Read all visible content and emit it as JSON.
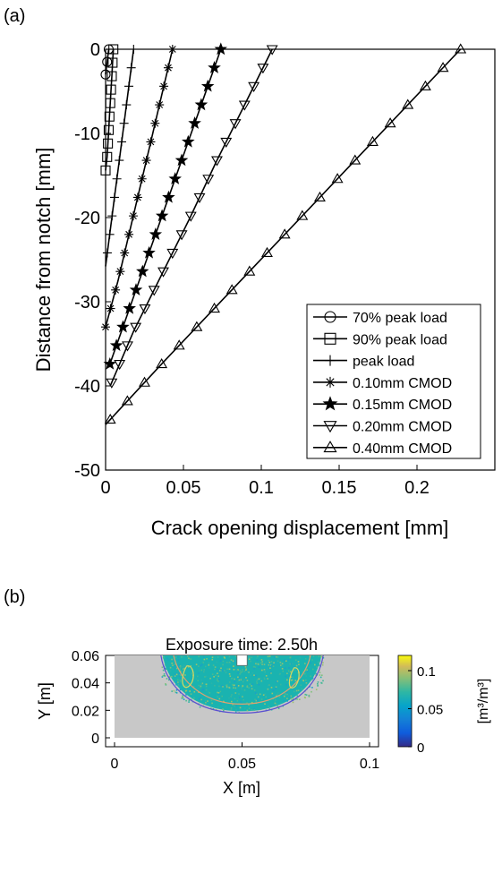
{
  "panels": {
    "a": {
      "label": "(a)"
    },
    "b": {
      "label": "(b)"
    }
  },
  "chart_data": [
    {
      "panel": "(a)",
      "type": "line",
      "title": "",
      "xlabel": "Crack opening displacement [mm]",
      "ylabel": "Distance from notch [mm]",
      "xlim": [
        0,
        0.25
      ],
      "ylim": [
        -50,
        0
      ],
      "xticks": [
        "0",
        "0.05",
        "0.1",
        "0.15",
        "0.2"
      ],
      "xtick_values": [
        0,
        0.05,
        0.1,
        0.15,
        0.2
      ],
      "yticks": [
        "0",
        "-10",
        "-20",
        "-30",
        "-40",
        "-50"
      ],
      "ytick_values": [
        0,
        -10,
        -20,
        -30,
        -40,
        -50
      ],
      "grid": false,
      "legend_position": "bottom-right",
      "series": [
        {
          "name": "70% peak load",
          "marker": "circle",
          "x": [
            0.002,
            0.001,
            0.0
          ],
          "y": [
            0,
            -1.5,
            -3
          ]
        },
        {
          "name": "90% peak load",
          "marker": "square",
          "x": [
            0.005,
            0.0045,
            0.004,
            0.0035,
            0.003,
            0.0025,
            0.002,
            0.0015,
            0.001,
            0.0
          ],
          "y": [
            0,
            -1.6,
            -3.2,
            -4.8,
            -6.4,
            -8,
            -9.6,
            -11.2,
            -12.8,
            -14.4
          ]
        },
        {
          "name": "peak load",
          "marker": "plus",
          "x": [
            0.018,
            0.015,
            0.012,
            0.009,
            0.006,
            0.003,
            0.0
          ],
          "y": [
            0,
            -4.3,
            -8.6,
            -12.9,
            -17.2,
            -21.5,
            -25.8
          ]
        },
        {
          "name": "0.10mm CMOD",
          "marker": "asterisk",
          "x": [
            0.043,
            0.036,
            0.029,
            0.022,
            0.015,
            0.008,
            0.0
          ],
          "y": [
            0,
            -5.5,
            -11,
            -16.5,
            -22,
            -27.5,
            -33
          ]
        },
        {
          "name": "0.15mm CMOD",
          "marker": "star",
          "x": [
            0.074,
            0.062,
            0.05,
            0.038,
            0.026,
            0.014,
            0.002
          ],
          "y": [
            0,
            -6.3,
            -12.6,
            -18.9,
            -25.2,
            -31.5,
            -37.8
          ]
        },
        {
          "name": "0.20mm CMOD",
          "marker": "triangle-down",
          "x": [
            0.107,
            0.089,
            0.071,
            0.054,
            0.036,
            0.018,
            0.003
          ],
          "y": [
            0,
            -6.7,
            -13.4,
            -20.1,
            -26.8,
            -33.5,
            -40
          ]
        },
        {
          "name": "0.40mm CMOD",
          "marker": "triangle-up",
          "x": [
            0.228,
            0.19,
            0.152,
            0.114,
            0.076,
            0.038,
            0.0
          ],
          "y": [
            0,
            -7.4,
            -14.8,
            -22.2,
            -29.6,
            -37,
            -44.6
          ]
        }
      ]
    },
    {
      "panel": "(b)",
      "type": "heatmap",
      "title": "Exposure time: 2.50h",
      "xlabel": "X [m]",
      "ylabel": "Y [m]",
      "xlim": [
        0,
        0.1
      ],
      "ylim": [
        0,
        0.06
      ],
      "xticks": [
        "0",
        "0.05",
        "0.1"
      ],
      "xtick_values": [
        0,
        0.05,
        0.1
      ],
      "yticks": [
        "0",
        "0.02",
        "0.04",
        "0.06"
      ],
      "ytick_values": [
        0,
        0.02,
        0.04,
        0.06
      ],
      "colorbar": {
        "label": "[m³/m³]",
        "range": [
          0,
          0.12
        ],
        "ticks": [
          "0",
          "0.05",
          "0.1"
        ],
        "tick_values": [
          0,
          0.05,
          0.1
        ],
        "colormap": "parula"
      },
      "colors": {
        "background": "#c8c8c8",
        "contour_outer": "#5a4fd0",
        "contour_mid": "#e0a070",
        "contour_inner": "#d8d860"
      },
      "wet_region": {
        "description_units": "data",
        "notch_x": 0.05,
        "notch_width": 0.004,
        "notch_depth": 0.008,
        "top_width_x": [
          0.018,
          0.082
        ],
        "bottom_y": 0.018
      }
    }
  ]
}
